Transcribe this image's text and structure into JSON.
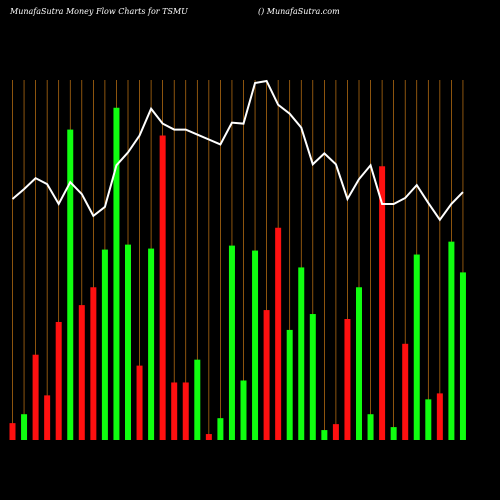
{
  "chart_data": {
    "type": "bar-line",
    "title": "MunafaSutra  Money Flow  Charts for TSMU",
    "subtitle": "() MunafaSutra.com",
    "categories": [
      null,
      null,
      null,
      null,
      null,
      null,
      null,
      null,
      null,
      null,
      null,
      null,
      null,
      null,
      null,
      null,
      null,
      null,
      null,
      null,
      null,
      null,
      null,
      null,
      null,
      null,
      null,
      null,
      null,
      null,
      null,
      null,
      null,
      null,
      null,
      null,
      null,
      null,
      null,
      null
    ],
    "ylim": [
      0,
      365
    ],
    "grid": true,
    "grid_color": "#c87814",
    "background": "#000000",
    "bars": {
      "values": [
        17,
        26,
        86,
        45,
        119,
        313,
        136,
        154,
        192,
        335,
        197,
        75,
        193,
        307,
        58,
        58,
        81,
        6,
        22,
        196,
        60,
        191,
        131,
        214,
        111,
        174,
        127,
        10,
        16,
        122,
        154,
        26,
        276,
        13,
        97,
        187,
        41,
        47,
        200,
        169
      ],
      "colors": [
        "#ff1010",
        "#10ff10",
        "#ff1010",
        "#ff1010",
        "#ff1010",
        "#10ff10",
        "#ff1010",
        "#ff1010",
        "#10ff10",
        "#10ff10",
        "#10ff10",
        "#ff1010",
        "#10ff10",
        "#ff1010",
        "#ff1010",
        "#ff1010",
        "#10ff10",
        "#ff1010",
        "#10ff10",
        "#10ff10",
        "#10ff10",
        "#10ff10",
        "#ff1010",
        "#ff1010",
        "#10ff10",
        "#10ff10",
        "#10ff10",
        "#10ff10",
        "#ff1010",
        "#ff1010",
        "#10ff10",
        "#10ff10",
        "#ff1010",
        "#10ff10",
        "#ff1010",
        "#10ff10",
        "#10ff10",
        "#ff1010",
        "#10ff10",
        "#10ff10"
      ]
    },
    "line": {
      "color": "#ffffff",
      "values": [
        243,
        253,
        264,
        258,
        238,
        260,
        248,
        226,
        235,
        277,
        290,
        307,
        334,
        319,
        313,
        313,
        308,
        303,
        298,
        320,
        319,
        360,
        362,
        338,
        329,
        315,
        278,
        289,
        278,
        243,
        263,
        277,
        238,
        238,
        244,
        257,
        239,
        222,
        238,
        250
      ]
    }
  }
}
